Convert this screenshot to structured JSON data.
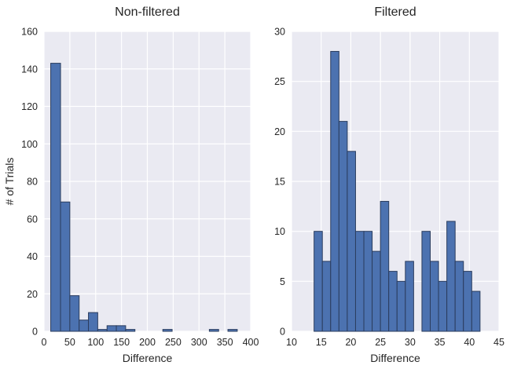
{
  "chart_data": [
    {
      "type": "bar",
      "title": "Non-filtered",
      "xlabel": "Difference",
      "ylabel": "# of Trials",
      "xlim": [
        0,
        400
      ],
      "ylim": [
        0,
        160
      ],
      "xticks": [
        "0",
        "50",
        "100",
        "150",
        "200",
        "250",
        "300",
        "350",
        "400"
      ],
      "yticks": [
        "0",
        "20",
        "40",
        "60",
        "80",
        "100",
        "120",
        "140",
        "160"
      ],
      "grid": true,
      "bins": [
        {
          "x0": 13,
          "x1": 32,
          "value": 143
        },
        {
          "x0": 32,
          "x1": 50,
          "value": 69
        },
        {
          "x0": 50,
          "x1": 68,
          "value": 19
        },
        {
          "x0": 68,
          "x1": 86,
          "value": 6
        },
        {
          "x0": 86,
          "x1": 104,
          "value": 10
        },
        {
          "x0": 104,
          "x1": 122,
          "value": 1
        },
        {
          "x0": 122,
          "x1": 140,
          "value": 3
        },
        {
          "x0": 140,
          "x1": 158,
          "value": 3
        },
        {
          "x0": 158,
          "x1": 176,
          "value": 1
        },
        {
          "x0": 176,
          "x1": 194,
          "value": 0
        },
        {
          "x0": 194,
          "x1": 212,
          "value": 0
        },
        {
          "x0": 212,
          "x1": 230,
          "value": 0
        },
        {
          "x0": 230,
          "x1": 248,
          "value": 1
        },
        {
          "x0": 248,
          "x1": 266,
          "value": 0
        },
        {
          "x0": 266,
          "x1": 284,
          "value": 0
        },
        {
          "x0": 284,
          "x1": 302,
          "value": 0
        },
        {
          "x0": 302,
          "x1": 320,
          "value": 0
        },
        {
          "x0": 320,
          "x1": 338,
          "value": 1
        },
        {
          "x0": 338,
          "x1": 356,
          "value": 0
        },
        {
          "x0": 356,
          "x1": 374,
          "value": 1
        }
      ]
    },
    {
      "type": "bar",
      "title": "Filtered",
      "xlabel": "Difference",
      "ylabel": "",
      "xlim": [
        10,
        45
      ],
      "ylim": [
        0,
        30
      ],
      "xticks": [
        "10",
        "15",
        "20",
        "25",
        "30",
        "35",
        "40",
        "45"
      ],
      "yticks": [
        "0",
        "5",
        "10",
        "15",
        "20",
        "25",
        "30"
      ],
      "grid": true,
      "bins": [
        {
          "x0": 13.8,
          "x1": 15.2,
          "value": 10
        },
        {
          "x0": 15.2,
          "x1": 16.6,
          "value": 7
        },
        {
          "x0": 16.6,
          "x1": 18.0,
          "value": 28
        },
        {
          "x0": 18.0,
          "x1": 19.4,
          "value": 21
        },
        {
          "x0": 19.4,
          "x1": 20.8,
          "value": 18
        },
        {
          "x0": 20.8,
          "x1": 22.2,
          "value": 10
        },
        {
          "x0": 22.2,
          "x1": 23.6,
          "value": 10
        },
        {
          "x0": 23.6,
          "x1": 25.0,
          "value": 8
        },
        {
          "x0": 25.0,
          "x1": 26.4,
          "value": 13
        },
        {
          "x0": 26.4,
          "x1": 27.8,
          "value": 6
        },
        {
          "x0": 27.8,
          "x1": 29.2,
          "value": 5
        },
        {
          "x0": 29.2,
          "x1": 30.6,
          "value": 7
        },
        {
          "x0": 30.6,
          "x1": 32.0,
          "value": 0
        },
        {
          "x0": 32.0,
          "x1": 33.4,
          "value": 10
        },
        {
          "x0": 33.4,
          "x1": 34.8,
          "value": 7
        },
        {
          "x0": 34.8,
          "x1": 36.2,
          "value": 5
        },
        {
          "x0": 36.2,
          "x1": 37.6,
          "value": 11
        },
        {
          "x0": 37.6,
          "x1": 39.0,
          "value": 7
        },
        {
          "x0": 39.0,
          "x1": 40.4,
          "value": 6
        },
        {
          "x0": 40.4,
          "x1": 41.8,
          "value": 4
        }
      ]
    }
  ],
  "colors": {
    "bar_fill": "#4c72b0",
    "bar_edge": "#2b3d5e",
    "axes_bg": "#eaeaf2",
    "grid": "#ffffff",
    "text": "#262626"
  }
}
